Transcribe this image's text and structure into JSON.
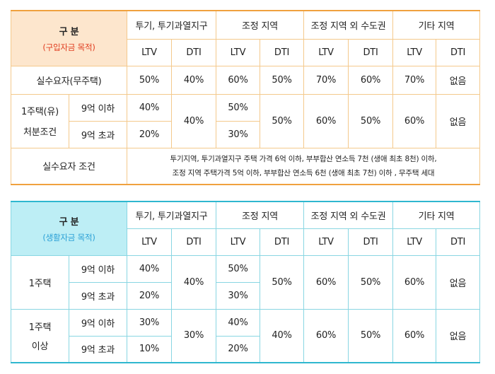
{
  "colors": {
    "table1_accent": "#f0a13e",
    "table1_header_bg": "#fde6cd",
    "table1_subtitle": "#e03c1f",
    "table2_accent": "#2fb7cf",
    "table2_header_bg": "#bdeef5",
    "table2_subtitle": "#2aa0d6"
  },
  "table1": {
    "corner_main": "구 분",
    "corner_sub": "(구입자금 목적)",
    "regions": [
      "투기, 투기과열지구",
      "조정 지역",
      "조정 지역 외 수도권",
      "기타 지역"
    ],
    "ltv": "LTV",
    "dti": "DTI",
    "rows": {
      "actual_demand": {
        "label": "실수요자(무주택)",
        "values": [
          "50%",
          "40%",
          "60%",
          "50%",
          "70%",
          "60%",
          "70%",
          "없음"
        ]
      },
      "one_house": {
        "label_line1": "1주택(유)",
        "label_line2": "처분조건",
        "sub1": "9억 이하",
        "sub2": "9억 초과",
        "spec_ltv_1": "40%",
        "spec_ltv_2": "20%",
        "spec_dti": "40%",
        "adj_ltv_1": "50%",
        "adj_ltv_2": "30%",
        "adj_dti": "50%",
        "metro_ltv": "60%",
        "metro_dti": "50%",
        "other_ltv": "60%",
        "other_dti": "없음"
      },
      "condition": {
        "label": "실수요자 조건",
        "line1": "투기지역, 투기과열지구 주택 가격 6억 이하, 부부합산 연소득 7천 (생애 최초 8천) 이하,",
        "line2": "조정 지역 주택가격 5억 이하, 부부합산 연소득 6천 (생애 최초 7천) 이하 , 무주택 세대"
      }
    }
  },
  "table2": {
    "corner_main": "구 분",
    "corner_sub": "(생활자금 목적)",
    "regions": [
      "투기, 투기과열지구",
      "조정 지역",
      "조정 지역 외 수도권",
      "기타 지역"
    ],
    "ltv": "LTV",
    "dti": "DTI",
    "groups": [
      {
        "label_line1": "1주택",
        "label_line2": "",
        "sub1": "9억 이하",
        "sub2": "9억 초과",
        "spec_ltv_1": "40%",
        "spec_ltv_2": "20%",
        "spec_dti": "40%",
        "adj_ltv_1": "50%",
        "adj_ltv_2": "30%",
        "adj_dti": "50%",
        "metro_ltv": "60%",
        "metro_dti": "50%",
        "other_ltv": "60%",
        "other_dti": "없음"
      },
      {
        "label_line1": "1주택",
        "label_line2": "이상",
        "sub1": "9억 이하",
        "sub2": "9억 초과",
        "spec_ltv_1": "30%",
        "spec_ltv_2": "10%",
        "spec_dti": "30%",
        "adj_ltv_1": "40%",
        "adj_ltv_2": "20%",
        "adj_dti": "40%",
        "metro_ltv": "60%",
        "metro_dti": "50%",
        "other_ltv": "60%",
        "other_dti": "없음"
      }
    ]
  }
}
